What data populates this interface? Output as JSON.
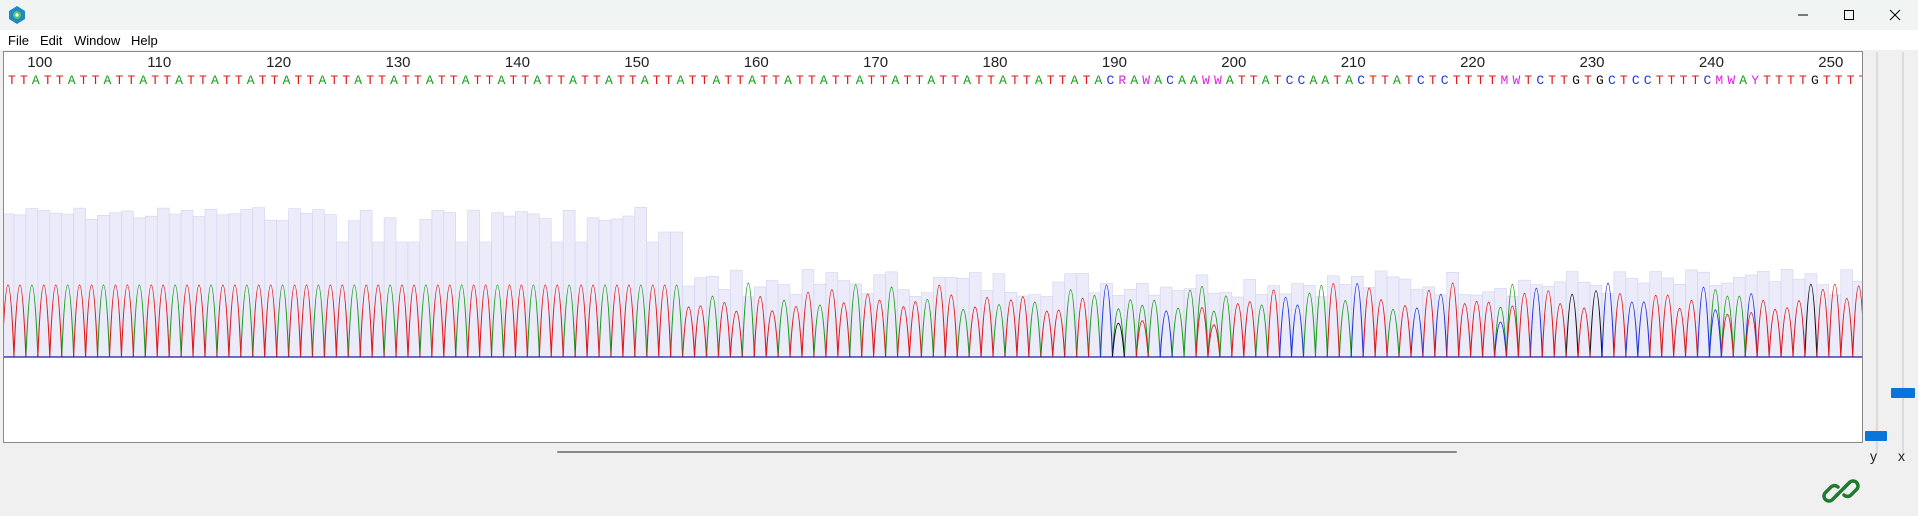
{
  "menu": [
    "File",
    "Edit",
    "Window",
    "Help"
  ],
  "ruler": {
    "labels": [
      "100",
      "110",
      "120",
      "130",
      "140",
      "150",
      "160",
      "170",
      "180",
      "190",
      "200",
      "210",
      "220",
      "230",
      "240",
      "250"
    ]
  },
  "sequence": "TTATTATTATTATTATTATTATTATTATTATTATTATTATTATTATTATTATTATTATTATTATTATTATTATTATTATTATTATTATTATACRAWACAAWWATTATCCAATACTTATCTCTTTTMWTCTTGTGCTCCTTTTCMWAYTTTTGTTTTAATWATTTTTAGTTC",
  "base_colors": {
    "A": "#1a9c1a",
    "C": "#2033e0",
    "G": "#111111",
    "T": "#e01818",
    "ambiguous": "#e020e0"
  },
  "quality_bar_color": "#ebebfa",
  "sliders": {
    "y_label": "y",
    "x_label": "x"
  },
  "icons": {
    "app": "dna-app-icon",
    "minimize": "minimize-icon",
    "maximize": "maximize-icon",
    "close": "close-icon",
    "status": "link-icon"
  },
  "status_icon_color": "#1e7a2e"
}
